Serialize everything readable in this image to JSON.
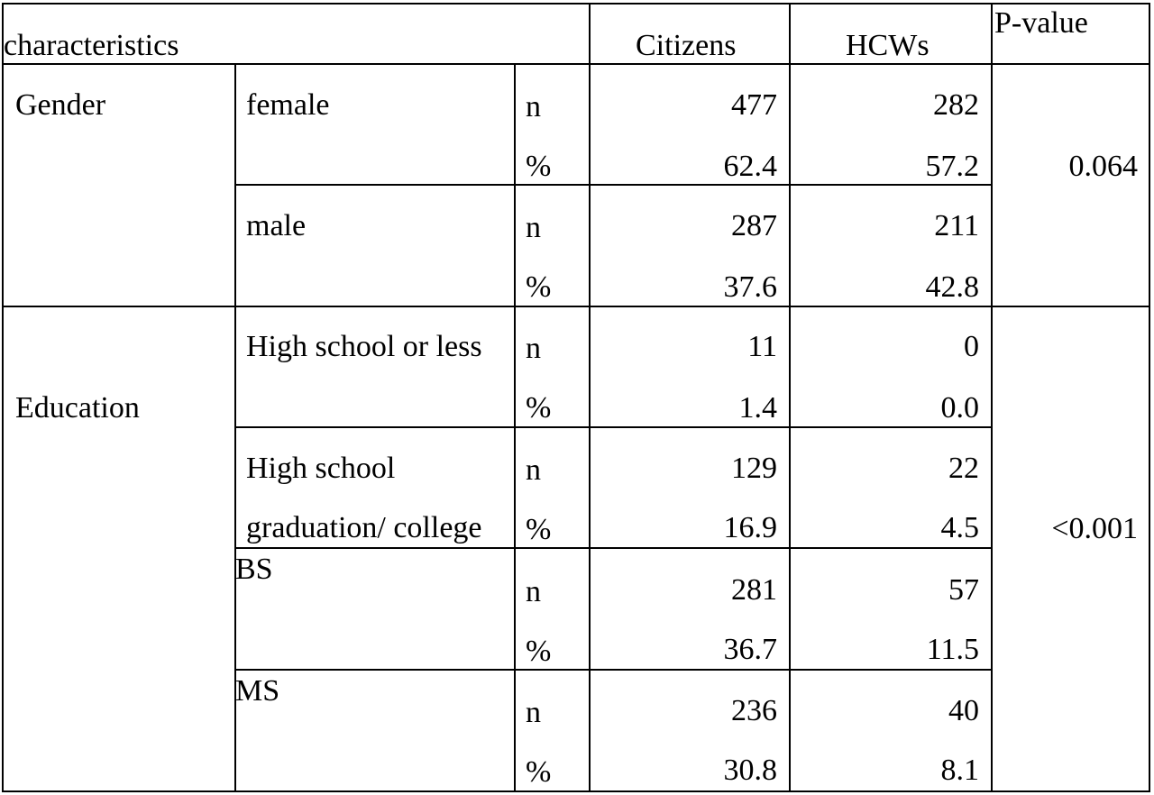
{
  "header": {
    "characteristics": "characteristics",
    "citizens": "Citizens",
    "hcws": "HCWs",
    "p_value": "P-value"
  },
  "gender": {
    "label": "Gender",
    "p_value": "0.064",
    "female": {
      "label": "female",
      "n_label": "n",
      "pct_label": "%",
      "citizens_n": "477",
      "hcws_n": "282",
      "citizens_pct": "62.4",
      "hcws_pct": "57.2"
    },
    "male": {
      "label": "male",
      "n_label": "n",
      "pct_label": "%",
      "citizens_n": "287",
      "hcws_n": "211",
      "citizens_pct": "37.6",
      "hcws_pct": "42.8"
    }
  },
  "education": {
    "label": "Education",
    "p_value": "<0.001",
    "hs_or_less": {
      "label": "High school or less",
      "n_label": "n",
      "pct_label": "%",
      "citizens_n": "11",
      "hcws_n": "0",
      "citizens_pct": "1.4",
      "hcws_pct": "0.0"
    },
    "hs_grad": {
      "label_line1": "High school",
      "label_line2": "graduation/ college",
      "n_label": "n",
      "pct_label": "%",
      "citizens_n": "129",
      "hcws_n": "22",
      "citizens_pct": "16.9",
      "hcws_pct": "4.5"
    },
    "bs": {
      "label": "BS",
      "n_label": "n",
      "pct_label": "%",
      "citizens_n": "281",
      "hcws_n": "57",
      "citizens_pct": "36.7",
      "hcws_pct": "11.5"
    },
    "ms": {
      "label": "MS",
      "n_label": "n",
      "pct_label": "%",
      "citizens_n": "236",
      "hcws_n": "40",
      "citizens_pct": "30.8",
      "hcws_pct": "8.1"
    }
  }
}
